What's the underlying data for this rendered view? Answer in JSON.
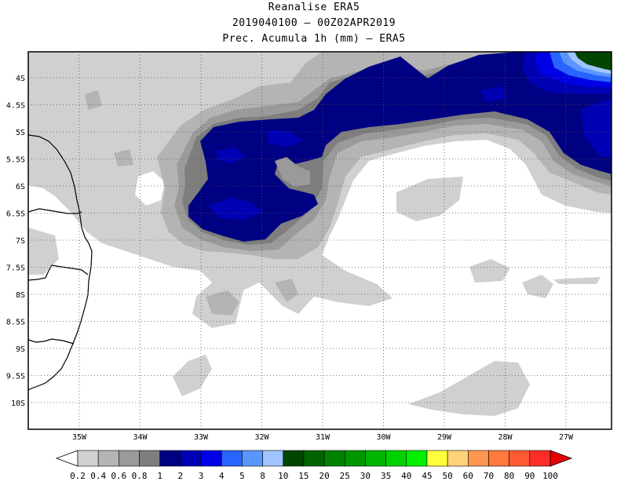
{
  "header": {
    "line1": "Reanalise ERA5",
    "line2": "2019040100 – 00Z02APR2019",
    "line3": "Prec. Acumula 1h (mm) – ERA5"
  },
  "axes": {
    "lat_labels": [
      "4S",
      "4.5S",
      "5S",
      "5.5S",
      "6S",
      "6.5S",
      "7S",
      "7.5S",
      "8S",
      "8.5S",
      "9S",
      "9.5S",
      "10S"
    ],
    "lon_labels": [
      "35W",
      "34W",
      "33W",
      "32W",
      "31W",
      "30W",
      "29W",
      "28W",
      "27W"
    ]
  },
  "colorbar": {
    "labels": [
      "0.2",
      "0.4",
      "0.6",
      "0.8",
      "1",
      "2",
      "3",
      "4",
      "5",
      "8",
      "10",
      "15",
      "20",
      "25",
      "30",
      "35",
      "40",
      "45",
      "50",
      "60",
      "70",
      "80",
      "90",
      "100"
    ],
    "colors": [
      "#ffffff",
      "#d0d0d0",
      "#b4b4b4",
      "#9a9a9a",
      "#7e7e7e",
      "#000082",
      "#0000b4",
      "#0000e6",
      "#2864ff",
      "#5a96ff",
      "#a0c4ff",
      "#004600",
      "#006400",
      "#008200",
      "#009600",
      "#00b400",
      "#00d200",
      "#00f000",
      "#ffff3c",
      "#ffd278",
      "#ff9650",
      "#ff783c",
      "#ff5a32",
      "#ff2d28",
      "#e60000"
    ]
  },
  "map": {
    "coastline_color": "#000000",
    "grid": "dotted"
  }
}
